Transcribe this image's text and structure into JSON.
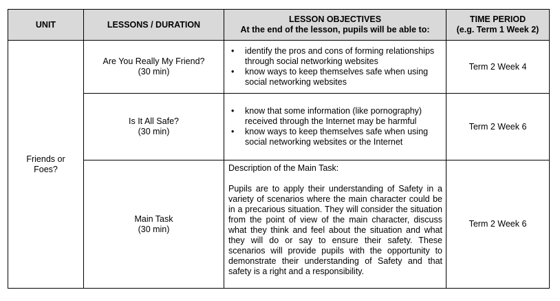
{
  "table": {
    "headers": {
      "unit": "UNIT",
      "lessons": "LESSONS / DURATION",
      "objectives_line1": "LESSON OBJECTIVES",
      "objectives_line2": "At the end of the lesson, pupils will be able to:",
      "time_line1": "TIME PERIOD",
      "time_line2": "(e.g. Term 1 Week 2)"
    },
    "unit_line1": "Friends or",
    "unit_line2": "Foes?",
    "rows": [
      {
        "lesson_title": "Are You Really My Friend?",
        "duration": "(30 min)",
        "objectives": [
          "identify the pros and cons of forming relationships through social networking websites",
          "know ways to keep themselves safe when using social networking websites"
        ],
        "time": "Term 2 Week 4"
      },
      {
        "lesson_title": "Is It All Safe?",
        "duration": "(30 min)",
        "objectives": [
          "know that some information (like pornography) received through the Internet may be harmful",
          "know ways to keep themselves safe when using social networking websites or the Internet"
        ],
        "time": "Term 2 Week 6"
      },
      {
        "lesson_title": "Main Task",
        "duration": "(30 min)",
        "task_heading": "Description of the Main Task:",
        "task_text": "Pupils are to apply their understanding of Safety in a variety of scenarios where the main character could be in a precarious situation. They will consider the situation from the point of view of the main character, discuss what they think and feel about the situation and what they will do or say to ensure their safety. These scenarios will provide pupils with the opportunity to demonstrate their understanding of Safety and that safety is a right and a responsibility.",
        "time": "Term 2 Week 6"
      }
    ]
  }
}
